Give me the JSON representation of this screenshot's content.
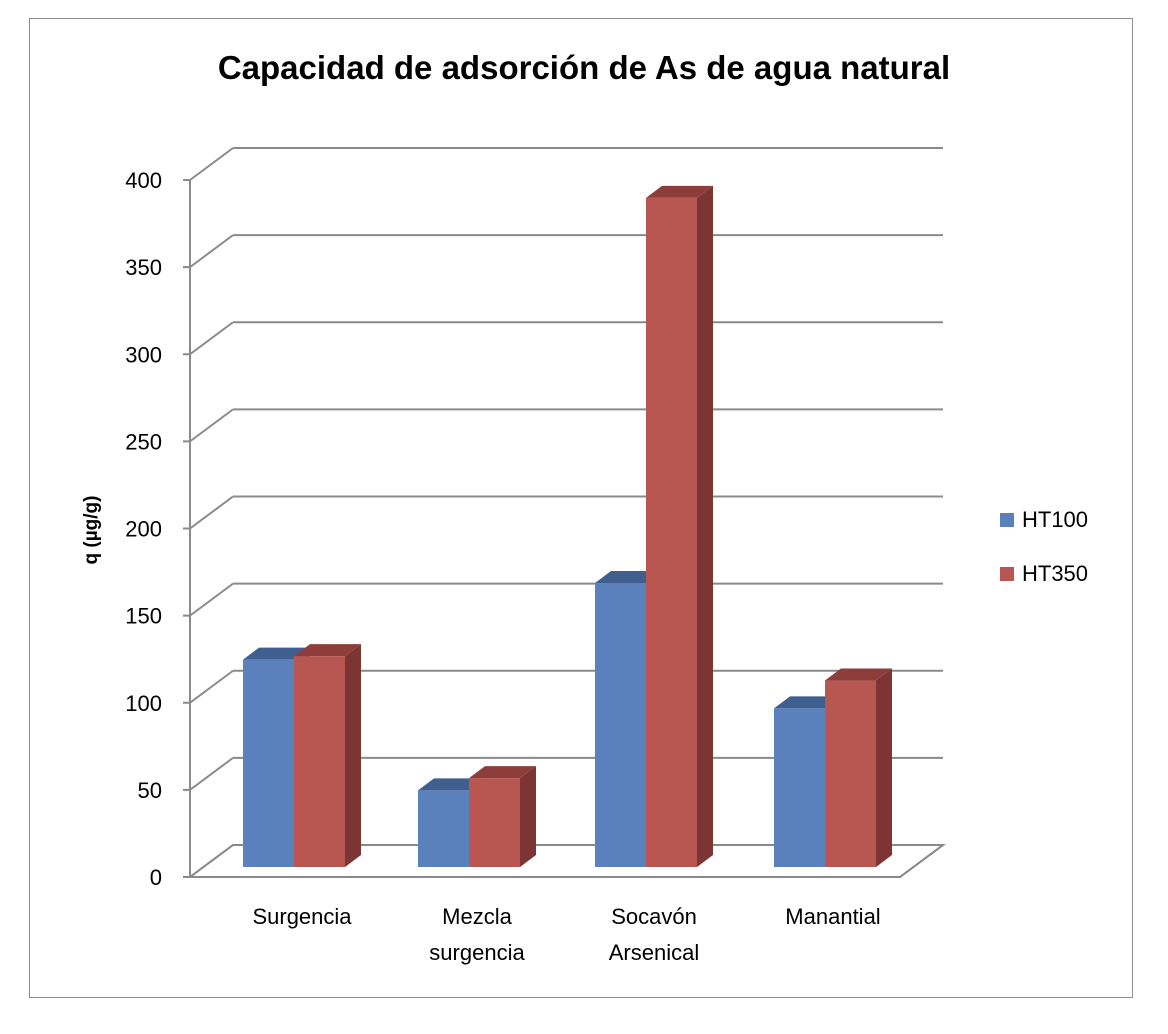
{
  "chart_data": {
    "type": "bar",
    "title": "Capacidad de adsorción de As de agua natural",
    "ylabel": "q (µg/g)",
    "xlabel": "",
    "categories": [
      [
        "Surgencia"
      ],
      [
        "Mezcla",
        "surgencia"
      ],
      [
        "Socavón",
        "Arsenical"
      ],
      [
        "Manantial"
      ]
    ],
    "series": [
      {
        "name": "HT100",
        "values": [
          119,
          44,
          163,
          91
        ],
        "color": "#5b81bd",
        "top_color": "#3f5f8f",
        "side_color": "#3d5a87"
      },
      {
        "name": "HT350",
        "values": [
          121,
          51,
          384,
          107
        ],
        "color": "#b85752",
        "top_color": "#8e3e3a",
        "side_color": "#7d3533"
      }
    ],
    "ylim": [
      0,
      400
    ],
    "yticks": [
      0,
      50,
      100,
      150,
      200,
      250,
      300,
      350,
      400
    ],
    "grid": true,
    "legend_position": "right",
    "style": "3d-clustered-column"
  }
}
